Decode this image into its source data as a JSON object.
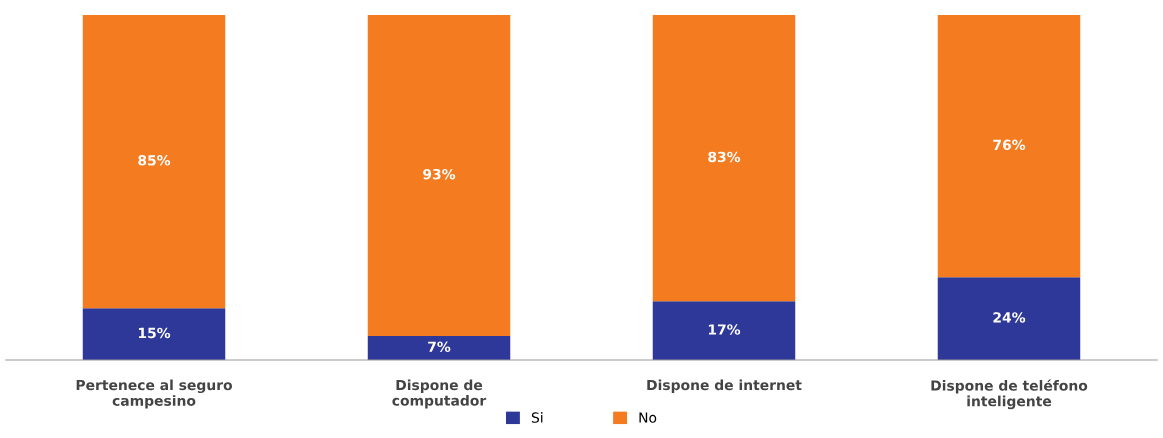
{
  "chart_data": {
    "type": "bar",
    "stacked": true,
    "categories": [
      "Pertenece al seguro\ncampesino",
      "Dispone de\ncomputador",
      "Dispone de internet",
      "Dispone de teléfono\ninteligente"
    ],
    "series": [
      {
        "name": "Si",
        "color": "#2e3899",
        "values": [
          15,
          7,
          17,
          24
        ],
        "value_labels": [
          "15%",
          "7%",
          "17%",
          "24%"
        ]
      },
      {
        "name": "No",
        "color": "#f47b20",
        "values": [
          85,
          93,
          83,
          76
        ],
        "value_labels": [
          "85%",
          "93%",
          "83%",
          "76%"
        ]
      }
    ],
    "tick_labels": "x",
    "legend": "bottom",
    "grid": false
  }
}
